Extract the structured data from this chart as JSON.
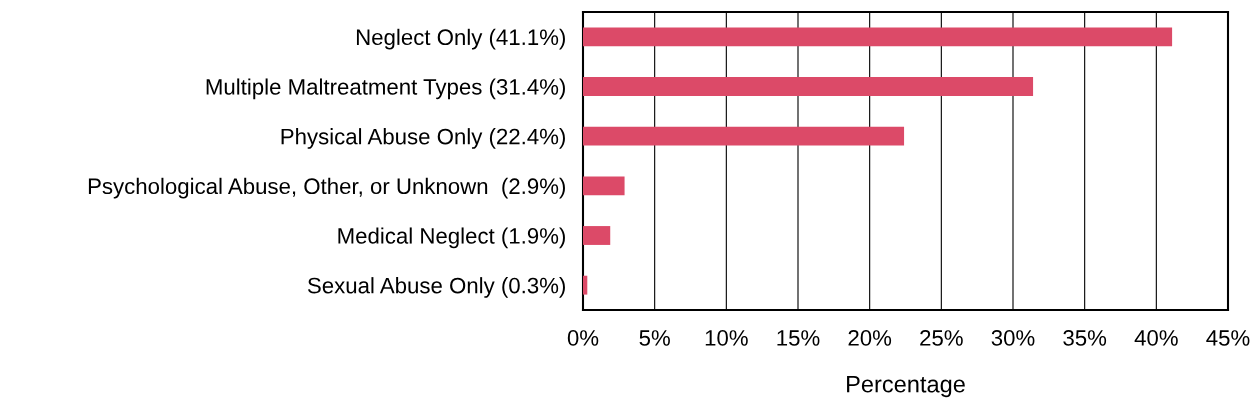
{
  "chart_data": {
    "type": "bar",
    "orientation": "horizontal",
    "xlabel": "Percentage",
    "categories": [
      "Neglect Only (41.1%)",
      "Multiple Maltreatment Types (31.4%)",
      "Physical Abuse Only (22.4%)",
      "Psychological Abuse, Other, or Unknown  (2.9%)",
      "Medical Neglect (1.9%)",
      "Sexual Abuse Only (0.3%)"
    ],
    "values": [
      41.1,
      31.4,
      22.4,
      2.9,
      1.9,
      0.3
    ],
    "color": "#dc4a68",
    "xlim": [
      0,
      45
    ],
    "xticks": [
      {
        "value": 0,
        "label": "0%"
      },
      {
        "value": 5,
        "label": "5%"
      },
      {
        "value": 10,
        "label": "10%"
      },
      {
        "value": 15,
        "label": "15%"
      },
      {
        "value": 20,
        "label": "20%"
      },
      {
        "value": 25,
        "label": "25%"
      },
      {
        "value": 30,
        "label": "30%"
      },
      {
        "value": 35,
        "label": "35%"
      },
      {
        "value": 40,
        "label": "40%"
      },
      {
        "value": 45,
        "label": "45%"
      }
    ],
    "grid": "x",
    "legend": false
  }
}
